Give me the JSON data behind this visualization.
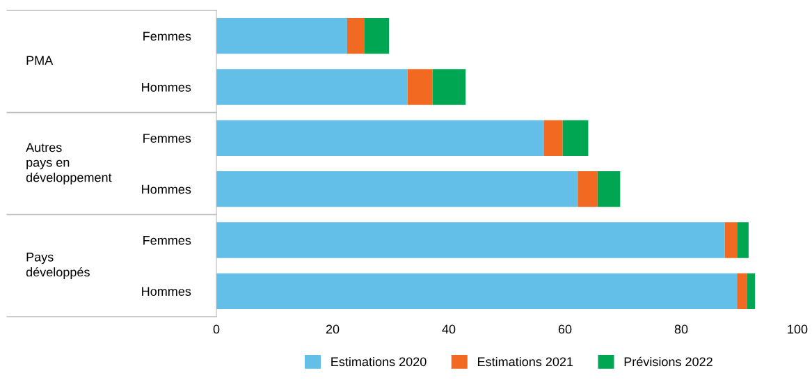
{
  "chart_data": {
    "type": "bar",
    "orientation": "horizontal",
    "stacked": true,
    "categories": [
      "Femmes",
      "Hommes",
      "Femmes",
      "Hommes",
      "Femmes",
      "Hommes"
    ],
    "series": [
      {
        "name": "Estimations 2020",
        "color": "#63bfe8",
        "values": [
          22.5,
          32.9,
          56.4,
          62.2,
          87.5,
          89.6
        ]
      },
      {
        "name": "Estimations 2021",
        "color": "#f26a21",
        "values": [
          3.0,
          4.3,
          3.2,
          3.4,
          2.2,
          1.7
        ]
      },
      {
        "name": "Prévisions 2022",
        "color": "#00a651",
        "values": [
          4.2,
          5.7,
          4.4,
          3.9,
          1.9,
          1.4
        ]
      }
    ],
    "annotations": [
      "PMA",
      "Autres\npays en\ndéveloppement",
      "Pays\ndéveloppés"
    ],
    "xlim": [
      0,
      100
    ],
    "xticks": [
      0,
      20,
      40,
      60,
      80,
      100
    ],
    "legend": "bottom",
    "grid": false
  }
}
